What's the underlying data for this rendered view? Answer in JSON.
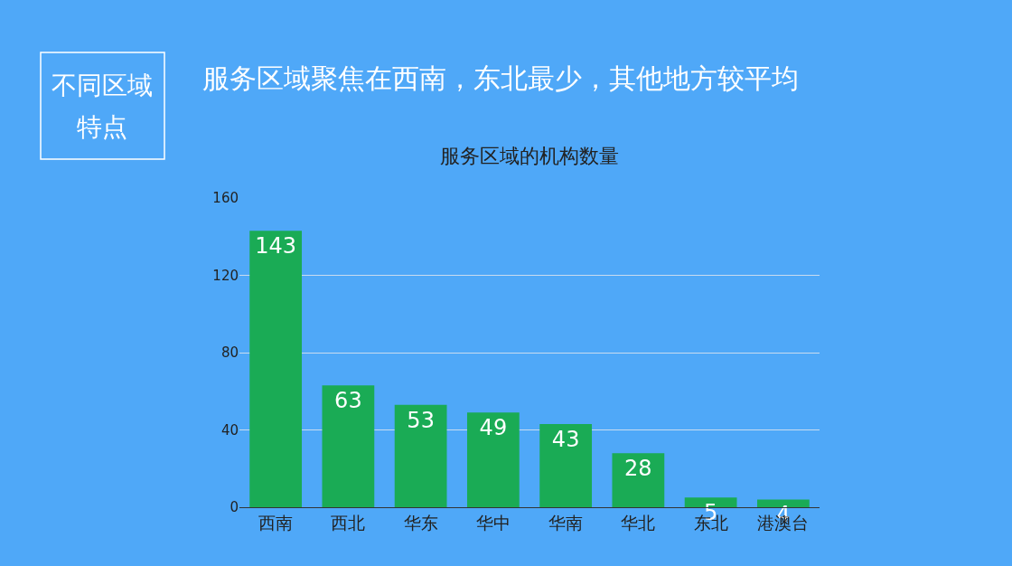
{
  "chart_data": {
    "type": "bar",
    "title": "服务区域的机构数量",
    "annotations": [
      "不同区域",
      "特点",
      "服务区域聚焦在西南，东北最少，其他地方较平均"
    ],
    "categories": [
      "西南",
      "西北",
      "华东",
      "华中",
      "华南",
      "华北",
      "东北",
      "港澳台"
    ],
    "values": [
      143,
      63,
      53,
      49,
      43,
      28,
      5,
      4
    ],
    "color": "#1aab55",
    "ylim": [
      0,
      160
    ],
    "yticks": [
      0,
      40,
      80,
      120,
      160
    ],
    "grid": "y",
    "data_labels": true
  }
}
